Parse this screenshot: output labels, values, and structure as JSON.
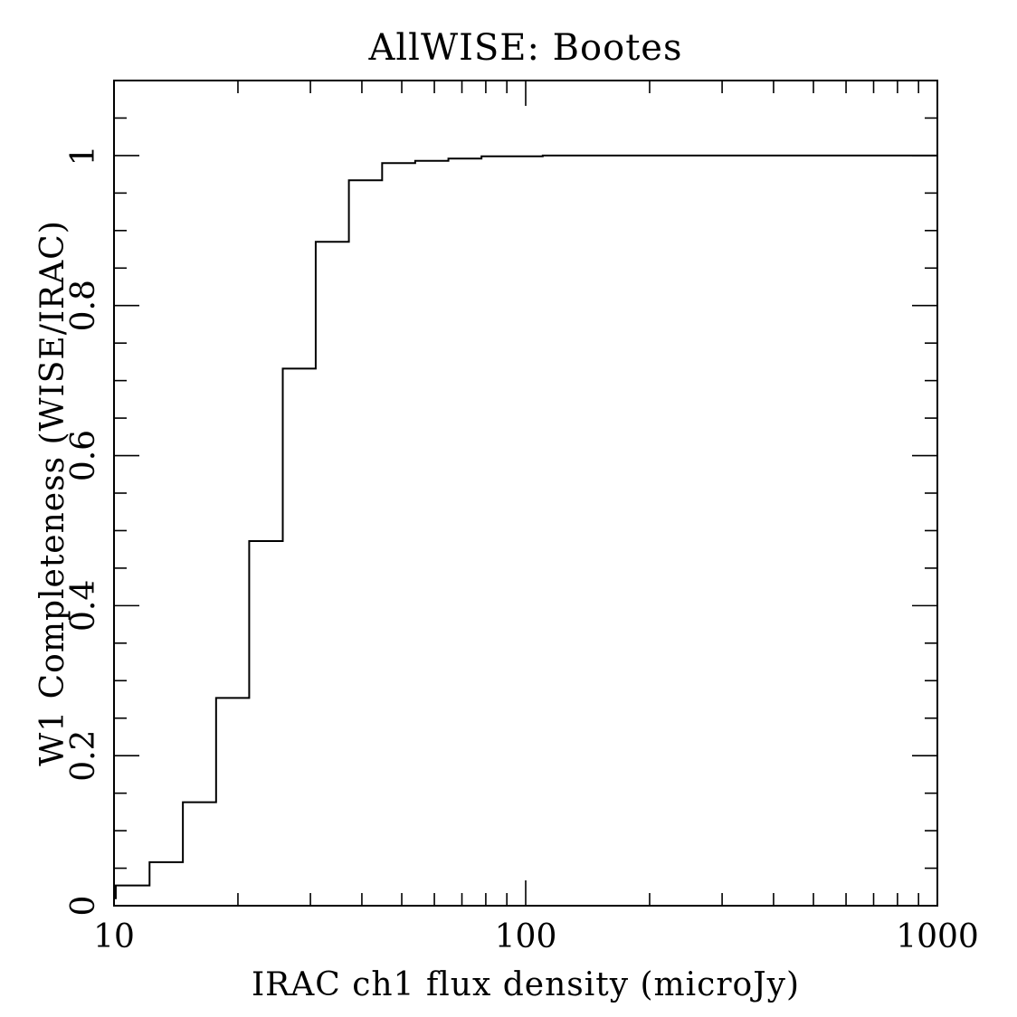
{
  "chart_data": {
    "type": "line",
    "title": "AllWISE: Bootes",
    "xlabel": "IRAC ch1 flux density (microJy)",
    "ylabel": "W1 Completeness (WISE/IRAC)",
    "xscale": "log",
    "xlim": [
      10,
      1000
    ],
    "ylim": [
      0,
      1.1
    ],
    "xticks": [
      10,
      100,
      1000
    ],
    "xtick_labels": [
      "10",
      "100",
      "1000"
    ],
    "yticks": [
      0,
      0.2,
      0.4,
      0.6,
      0.8,
      1
    ],
    "ytick_labels": [
      "0",
      "0.2",
      "0.4",
      "0.6",
      "0.8",
      "1"
    ],
    "drawstyle": "steps",
    "series": [
      {
        "x": [
          10,
          10.1,
          12.2,
          14.7,
          17.7,
          21.3,
          25.7,
          30.9,
          37.2,
          44.8,
          53.9,
          64.9,
          78.1,
          110,
          1000
        ],
        "y": [
          0.01,
          0.027,
          0.058,
          0.138,
          0.277,
          0.486,
          0.716,
          0.885,
          0.967,
          0.99,
          0.993,
          0.996,
          0.999,
          1.0,
          1.0
        ]
      }
    ],
    "grid": false,
    "color": "#000000"
  }
}
